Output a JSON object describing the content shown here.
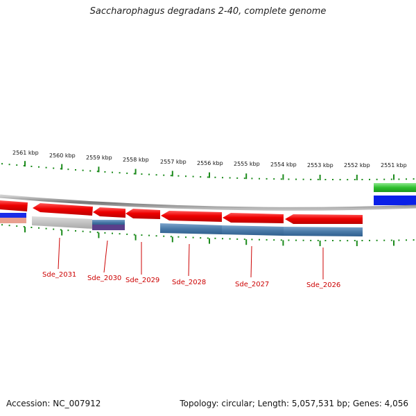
{
  "title": "Saccharophagus degradans 2-40, complete genome",
  "footer": {
    "accession": "Accession: NC_007912",
    "summary": "Topology: circular; Length: 5,057,531 bp; Genes: 4,056"
  },
  "scale": {
    "kbp_labels": [
      "2561 kbp",
      "2560 kbp",
      "2559 kbp",
      "2558 kbp",
      "2557 kbp",
      "2556 kbp",
      "2555 kbp",
      "2554 kbp",
      "2553 kbp",
      "2552 kbp",
      "2551 kbp"
    ]
  },
  "genes": [
    {
      "label": "Sde_2031"
    },
    {
      "label": "Sde_2030"
    },
    {
      "label": "Sde_2029"
    },
    {
      "label": "Sde_2028"
    },
    {
      "label": "Sde_2027"
    },
    {
      "label": "Sde_2026"
    }
  ],
  "colors": {
    "gene": "#ee0000",
    "tick": "#1a8a1a",
    "blue_track": "#4a7aa8",
    "grey_track": "#bbbbbb",
    "purple_track": "#5a3f8a",
    "green_feature": "#2fbf2f",
    "blue_feature": "#0a20e8",
    "backbone": "#888888",
    "label": "#cc0000"
  }
}
